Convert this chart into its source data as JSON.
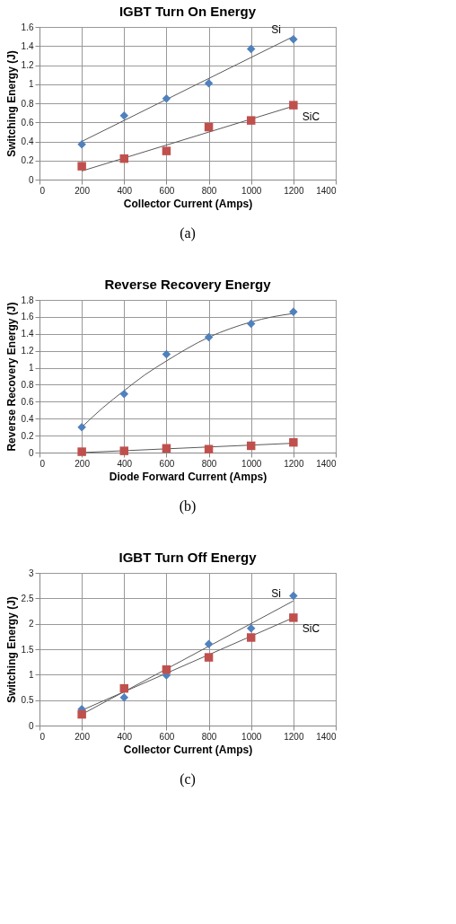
{
  "chart_data": [
    {
      "type": "scatter",
      "title": "IGBT Turn On Energy",
      "xlabel": "Collector Current (Amps)",
      "ylabel": "Switching Energy (J)",
      "xlim": [
        0,
        1400
      ],
      "xticks": [
        0,
        200,
        400,
        600,
        800,
        1000,
        1200,
        1400
      ],
      "ylim": [
        0,
        1.6
      ],
      "yticks": [
        0,
        0.2,
        0.4,
        0.6,
        0.8,
        1,
        1.2,
        1.4,
        1.6
      ],
      "grid": true,
      "legend": false,
      "series": [
        {
          "type": "scatter",
          "marker": "diamond",
          "color": "#4f81bd",
          "x": [
            200,
            400,
            600,
            800,
            1000,
            1200
          ],
          "values": [
            0.37,
            0.67,
            0.85,
            1.01,
            1.37,
            1.47
          ]
        },
        {
          "type": "scatter",
          "marker": "square",
          "color": "#c0504d",
          "x": [
            200,
            400,
            600,
            800,
            1000,
            1200
          ],
          "values": [
            0.14,
            0.22,
            0.3,
            0.55,
            0.62,
            0.78
          ]
        },
        {
          "type": "line",
          "color": "#595959",
          "x": [
            200,
            1200
          ],
          "values": [
            0.4,
            1.5
          ]
        },
        {
          "type": "line",
          "color": "#595959",
          "x": [
            200,
            1200
          ],
          "values": [
            0.09,
            0.77
          ]
        }
      ],
      "annotations": [
        "Si",
        "SiC",
        "(a)"
      ]
    },
    {
      "type": "scatter",
      "title": "Reverse Recovery Energy",
      "xlabel": "Diode Forward Current (Amps)",
      "ylabel": "Reverse Recovery Energy (J)",
      "xlim": [
        0,
        1400
      ],
      "xticks": [
        0,
        200,
        400,
        600,
        800,
        1000,
        1200,
        1400
      ],
      "ylim": [
        0,
        1.8
      ],
      "yticks": [
        0,
        0.2,
        0.4,
        0.6,
        0.8,
        1,
        1.2,
        1.4,
        1.6,
        1.8
      ],
      "grid": true,
      "legend": false,
      "series": [
        {
          "type": "scatter",
          "marker": "diamond",
          "color": "#4f81bd",
          "x": [
            200,
            400,
            600,
            800,
            1000,
            1200
          ],
          "values": [
            0.3,
            0.69,
            1.16,
            1.36,
            1.52,
            1.66
          ]
        },
        {
          "type": "scatter",
          "marker": "square",
          "color": "#c0504d",
          "x": [
            200,
            400,
            600,
            800,
            1000,
            1200
          ],
          "values": [
            0.01,
            0.02,
            0.05,
            0.04,
            0.08,
            0.12
          ]
        },
        {
          "type": "line",
          "color": "#595959",
          "x": [
            200,
            300,
            400,
            500,
            600,
            700,
            800,
            900,
            1000,
            1100,
            1200
          ],
          "values": [
            0.3,
            0.53,
            0.73,
            0.92,
            1.08,
            1.23,
            1.36,
            1.46,
            1.54,
            1.6,
            1.64
          ]
        },
        {
          "type": "line",
          "color": "#595959",
          "x": [
            200,
            1200
          ],
          "values": [
            0.0,
            0.11
          ]
        }
      ],
      "annotations": [
        "(b)"
      ]
    },
    {
      "type": "scatter",
      "title": "IGBT Turn Off Energy",
      "xlabel": "Collector Current (Amps)",
      "ylabel": "Switching Energy  (J)",
      "xlim": [
        0,
        1400
      ],
      "xticks": [
        0,
        200,
        400,
        600,
        800,
        1000,
        1200,
        1400
      ],
      "ylim": [
        0,
        3
      ],
      "yticks": [
        0,
        0.5,
        1,
        1.5,
        2,
        2.5,
        3
      ],
      "grid": true,
      "legend": false,
      "series": [
        {
          "type": "scatter",
          "marker": "diamond",
          "color": "#4f81bd",
          "x": [
            200,
            400,
            600,
            800,
            1000,
            1200
          ],
          "values": [
            0.32,
            0.55,
            0.99,
            1.6,
            1.91,
            2.55
          ]
        },
        {
          "type": "scatter",
          "marker": "square",
          "color": "#c0504d",
          "x": [
            200,
            400,
            600,
            800,
            1000,
            1200
          ],
          "values": [
            0.22,
            0.73,
            1.1,
            1.34,
            1.73,
            2.12
          ]
        },
        {
          "type": "line",
          "color": "#595959",
          "x": [
            200,
            1200
          ],
          "values": [
            0.22,
            2.45
          ]
        },
        {
          "type": "line",
          "color": "#595959",
          "x": [
            200,
            1200
          ],
          "values": [
            0.3,
            2.12
          ]
        }
      ],
      "annotations": [
        "Si",
        "SiC",
        "(c)"
      ]
    }
  ]
}
